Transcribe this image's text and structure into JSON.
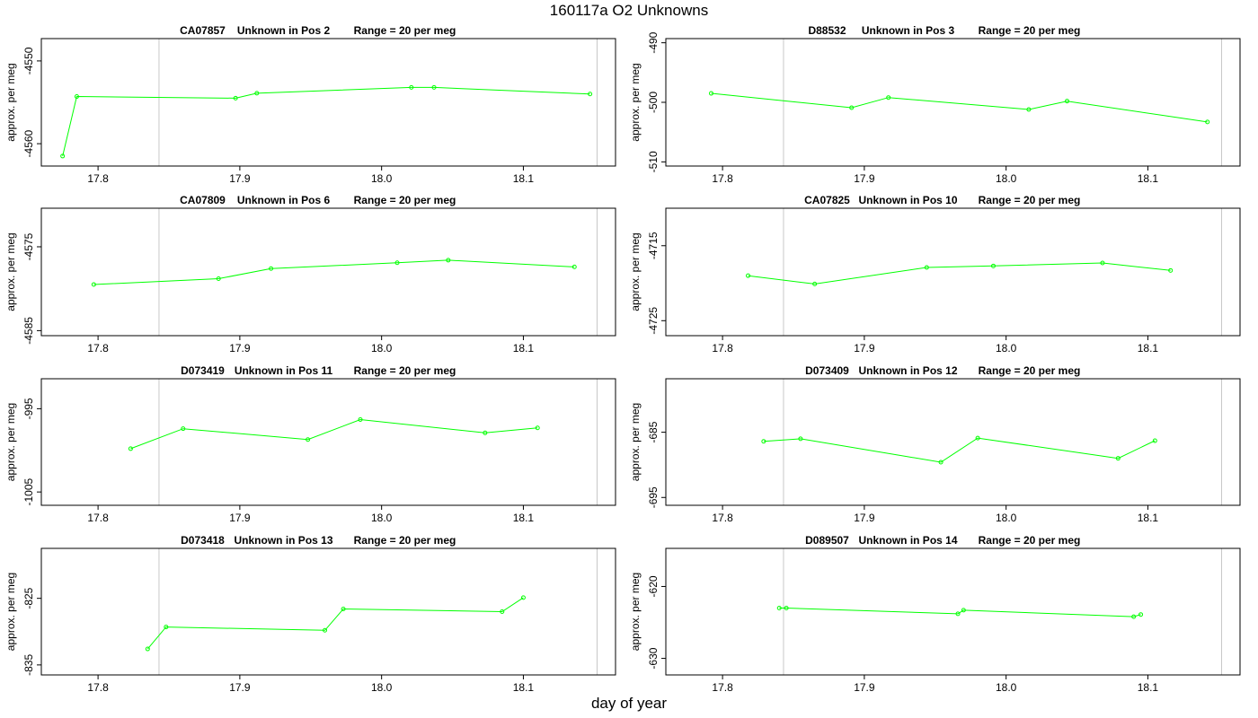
{
  "title": "160117a  O2 Unknowns",
  "xlabel": "day of year",
  "colors": {
    "series": "#00ff00",
    "reference_line": "#c8c8c8",
    "frame": "#000000"
  },
  "chart_data": [
    {
      "type": "line",
      "sample": "CA07857",
      "subtitle": "Unknown in Pos 2",
      "range_label": "Range = 20 per meg",
      "ylabel": "approx. per meg",
      "xlim": [
        17.76,
        18.165
      ],
      "ylim": [
        -4562.7,
        -4547.3
      ],
      "xticks": [
        17.8,
        17.9,
        18.0,
        18.1
      ],
      "yticks": [
        -4550,
        -4560
      ],
      "ref_lines": [
        17.843,
        18.152
      ],
      "points": [
        [
          17.775,
          -4561.5
        ],
        [
          17.785,
          -4554.3
        ],
        [
          17.897,
          -4554.5
        ],
        [
          17.912,
          -4553.9
        ],
        [
          18.021,
          -4553.2
        ],
        [
          18.037,
          -4553.2
        ],
        [
          18.147,
          -4554.0
        ]
      ]
    },
    {
      "type": "line",
      "sample": "D88532",
      "subtitle": "Unknown in Pos 3",
      "range_label": "Range = 20 per meg",
      "ylabel": "approx. per meg",
      "xlim": [
        17.76,
        18.165
      ],
      "ylim": [
        -510.7,
        -489.3
      ],
      "xticks": [
        17.8,
        17.9,
        18.0,
        18.1
      ],
      "yticks": [
        -490,
        -500,
        -510
      ],
      "ref_lines": [
        17.843,
        18.152
      ],
      "points": [
        [
          17.792,
          -498.5
        ],
        [
          17.891,
          -500.9
        ],
        [
          17.917,
          -499.2
        ],
        [
          18.016,
          -501.2
        ],
        [
          18.043,
          -499.8
        ],
        [
          18.142,
          -503.3
        ]
      ]
    },
    {
      "type": "line",
      "sample": "CA07809",
      "subtitle": "Unknown in Pos 6",
      "range_label": "Range = 20 per meg",
      "ylabel": "approx. per meg",
      "xlim": [
        17.76,
        18.165
      ],
      "ylim": [
        -4585.6,
        -4570.4
      ],
      "xticks": [
        17.8,
        17.9,
        18.0,
        18.1
      ],
      "yticks": [
        -4575,
        -4585
      ],
      "ref_lines": [
        17.843,
        18.152
      ],
      "points": [
        [
          17.797,
          -4579.5
        ],
        [
          17.885,
          -4578.8
        ],
        [
          17.922,
          -4577.6
        ],
        [
          18.011,
          -4576.9
        ],
        [
          18.047,
          -4576.6
        ],
        [
          18.136,
          -4577.4
        ]
      ]
    },
    {
      "type": "line",
      "sample": "CA07825",
      "subtitle": "Unknown in Pos 10",
      "range_label": "Range = 20 per meg",
      "ylabel": "approx. per meg",
      "xlim": [
        17.76,
        18.165
      ],
      "ylim": [
        -4727.0,
        -4710.0
      ],
      "xticks": [
        17.8,
        17.9,
        18.0,
        18.1
      ],
      "yticks": [
        -4715,
        -4725
      ],
      "ref_lines": [
        17.843,
        18.152
      ],
      "points": [
        [
          17.818,
          -4719.0
        ],
        [
          17.865,
          -4720.1
        ],
        [
          17.944,
          -4717.9
        ],
        [
          17.991,
          -4717.7
        ],
        [
          18.068,
          -4717.3
        ],
        [
          18.116,
          -4718.3
        ]
      ]
    },
    {
      "type": "line",
      "sample": "D073419",
      "subtitle": "Unknown in Pos 11",
      "range_label": "Range = 20 per meg",
      "ylabel": "approx. per meg",
      "xlim": [
        17.76,
        18.165
      ],
      "ylim": [
        -1006.6,
        -991.4
      ],
      "xticks": [
        17.8,
        17.9,
        18.0,
        18.1
      ],
      "yticks": [
        -995,
        -1005
      ],
      "ref_lines": [
        17.843,
        18.152
      ],
      "points": [
        [
          17.823,
          -999.8
        ],
        [
          17.86,
          -997.4
        ],
        [
          17.948,
          -998.7
        ],
        [
          17.985,
          -996.3
        ],
        [
          18.073,
          -997.9
        ],
        [
          18.11,
          -997.3
        ]
      ]
    },
    {
      "type": "line",
      "sample": "D073409",
      "subtitle": "Unknown in Pos 12",
      "range_label": "Range = 20 per meg",
      "ylabel": "approx. per meg",
      "xlim": [
        17.76,
        18.165
      ],
      "ylim": [
        -696.2,
        -676.8
      ],
      "xticks": [
        17.8,
        17.9,
        18.0,
        18.1
      ],
      "yticks": [
        -685,
        -695
      ],
      "ref_lines": [
        17.843,
        18.152
      ],
      "points": [
        [
          17.829,
          -686.4
        ],
        [
          17.855,
          -686.0
        ],
        [
          17.954,
          -689.6
        ],
        [
          17.98,
          -685.9
        ],
        [
          18.079,
          -689.0
        ],
        [
          18.105,
          -686.3
        ]
      ]
    },
    {
      "type": "line",
      "sample": "D073418",
      "subtitle": "Unknown in Pos 13",
      "range_label": "Range = 20 per meg",
      "ylabel": "approx. per meg",
      "xlim": [
        17.76,
        18.165
      ],
      "ylim": [
        -836.5,
        -817.5
      ],
      "xticks": [
        17.8,
        17.9,
        18.0,
        18.1
      ],
      "yticks": [
        -825,
        -835
      ],
      "ref_lines": [
        17.843,
        18.152
      ],
      "points": [
        [
          17.835,
          -832.6
        ],
        [
          17.848,
          -829.3
        ],
        [
          17.96,
          -829.8
        ],
        [
          17.973,
          -826.6
        ],
        [
          18.085,
          -827.0
        ],
        [
          18.1,
          -824.9
        ]
      ]
    },
    {
      "type": "line",
      "sample": "D089507",
      "subtitle": "Unknown in Pos 14",
      "range_label": "Range = 20 per meg",
      "ylabel": "approx. per meg",
      "xlim": [
        17.76,
        18.165
      ],
      "ylim": [
        -632.3,
        -614.7
      ],
      "xticks": [
        17.8,
        17.9,
        18.0,
        18.1
      ],
      "yticks": [
        -620,
        -630
      ],
      "ref_lines": [
        17.843,
        18.152
      ],
      "points": [
        [
          17.84,
          -623.0
        ],
        [
          17.845,
          -623.0
        ],
        [
          17.966,
          -623.8
        ],
        [
          17.97,
          -623.3
        ],
        [
          18.09,
          -624.2
        ],
        [
          18.095,
          -623.9
        ]
      ]
    }
  ]
}
